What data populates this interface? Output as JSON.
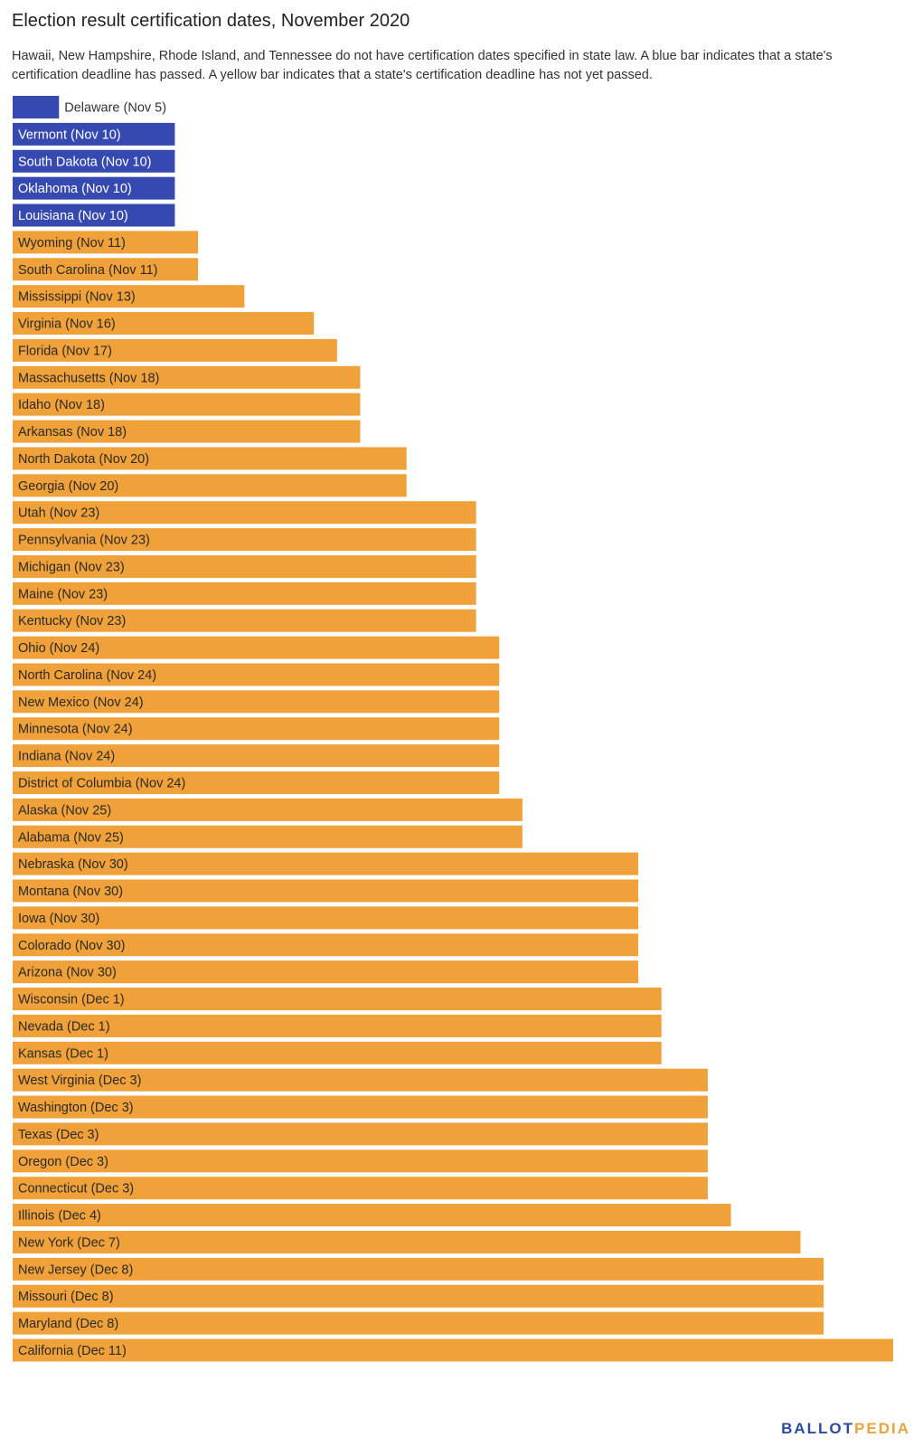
{
  "colors": {
    "passed": "#3549b0",
    "not_passed": "#f1a139",
    "label_on_bar": "#2a2a2a",
    "label_on_bar_passed": "#ffffff",
    "label_outside": "#333333"
  },
  "brand": {
    "part_a": "BALLOT",
    "part_b": "PEDIA"
  },
  "chart_data": {
    "type": "bar",
    "orientation": "horizontal",
    "title": "Election result certification dates, November 2020",
    "subtitle": "Hawaii, New Hampshire, Rhode Island, and Tennessee do not have certification dates specified in state law. A blue bar indicates that a state's certification deadline has passed. A yellow bar indicates that a state's certification deadline has not yet passed.",
    "xlabel": "",
    "ylabel": "",
    "grid": false,
    "legend": "none",
    "categories": [
      "Delaware (Nov 5)",
      "Vermont (Nov 10)",
      "South Dakota (Nov 10)",
      "Oklahoma (Nov 10)",
      "Louisiana (Nov 10)",
      "Wyoming (Nov 11)",
      "South Carolina (Nov 11)",
      "Mississippi (Nov 13)",
      "Virginia (Nov 16)",
      "Florida (Nov 17)",
      "Massachusetts (Nov 18)",
      "Idaho (Nov 18)",
      "Arkansas (Nov 18)",
      "North Dakota (Nov 20)",
      "Georgia (Nov 20)",
      "Utah (Nov 23)",
      "Pennsylvania (Nov 23)",
      "Michigan (Nov 23)",
      "Maine (Nov 23)",
      "Kentucky (Nov 23)",
      "Ohio (Nov 24)",
      "North Carolina (Nov 24)",
      "New Mexico (Nov 24)",
      "Minnesota (Nov 24)",
      "Indiana (Nov 24)",
      "District of Columbia (Nov 24)",
      "Alaska (Nov 25)",
      "Alabama (Nov 25)",
      "Nebraska (Nov 30)",
      "Montana (Nov 30)",
      "Iowa (Nov 30)",
      "Colorado (Nov 30)",
      "Arizona (Nov 30)",
      "Wisconsin (Dec 1)",
      "Nevada (Dec 1)",
      "Kansas (Dec 1)",
      "West Virginia (Dec 3)",
      "Washington (Dec 3)",
      "Texas (Dec 3)",
      "Oregon (Dec 3)",
      "Connecticut (Dec 3)",
      "Illinois (Dec 4)",
      "New York (Dec 7)",
      "New Jersey (Dec 8)",
      "Missouri (Dec 8)",
      "Maryland (Dec 8)",
      "California (Dec 11)"
    ],
    "values": [
      "2020-11-05",
      "2020-11-10",
      "2020-11-10",
      "2020-11-10",
      "2020-11-10",
      "2020-11-11",
      "2020-11-11",
      "2020-11-13",
      "2020-11-16",
      "2020-11-17",
      "2020-11-18",
      "2020-11-18",
      "2020-11-18",
      "2020-11-20",
      "2020-11-20",
      "2020-11-23",
      "2020-11-23",
      "2020-11-23",
      "2020-11-23",
      "2020-11-23",
      "2020-11-24",
      "2020-11-24",
      "2020-11-24",
      "2020-11-24",
      "2020-11-24",
      "2020-11-24",
      "2020-11-25",
      "2020-11-25",
      "2020-11-30",
      "2020-11-30",
      "2020-11-30",
      "2020-11-30",
      "2020-11-30",
      "2020-12-01",
      "2020-12-01",
      "2020-12-01",
      "2020-12-03",
      "2020-12-03",
      "2020-12-03",
      "2020-12-03",
      "2020-12-03",
      "2020-12-04",
      "2020-12-07",
      "2020-12-08",
      "2020-12-08",
      "2020-12-08",
      "2020-12-11"
    ],
    "xlim": [
      "2020-11-03",
      "2020-12-11"
    ],
    "status": [
      "passed",
      "passed",
      "passed",
      "passed",
      "passed",
      "not_passed",
      "not_passed",
      "not_passed",
      "not_passed",
      "not_passed",
      "not_passed",
      "not_passed",
      "not_passed",
      "not_passed",
      "not_passed",
      "not_passed",
      "not_passed",
      "not_passed",
      "not_passed",
      "not_passed",
      "not_passed",
      "not_passed",
      "not_passed",
      "not_passed",
      "not_passed",
      "not_passed",
      "not_passed",
      "not_passed",
      "not_passed",
      "not_passed",
      "not_passed",
      "not_passed",
      "not_passed",
      "not_passed",
      "not_passed",
      "not_passed",
      "not_passed",
      "not_passed",
      "not_passed",
      "not_passed",
      "not_passed",
      "not_passed",
      "not_passed",
      "not_passed",
      "not_passed",
      "not_passed",
      "not_passed"
    ]
  }
}
